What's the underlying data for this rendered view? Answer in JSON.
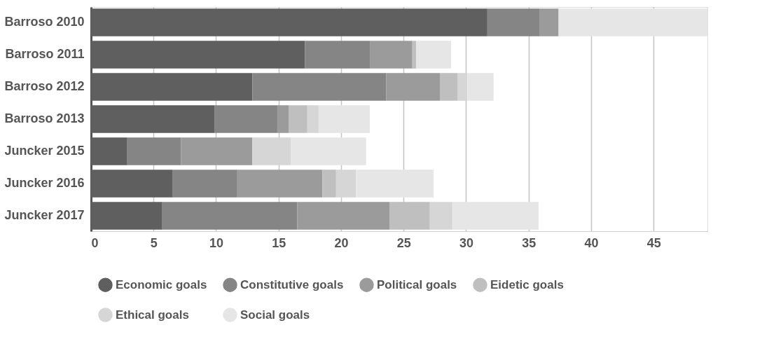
{
  "chart_data": {
    "type": "bar",
    "orientation": "horizontal",
    "stacked": true,
    "categories": [
      "Barroso 2010",
      "Barroso 2011",
      "Barroso 2012",
      "Barroso 2013",
      "Juncker 2015",
      "Juncker 2016",
      "Juncker 2017"
    ],
    "series": [
      {
        "name": "Economic goals",
        "color": "#5f5f5f",
        "values": [
          31.7,
          17.1,
          12.9,
          9.9,
          2.9,
          6.5,
          5.7
        ]
      },
      {
        "name": "Constitutive goals",
        "color": "#858585",
        "values": [
          4.2,
          5.2,
          10.7,
          5.0,
          4.3,
          5.2,
          10.8
        ]
      },
      {
        "name": "Political goals",
        "color": "#9b9b9b",
        "values": [
          1.5,
          3.4,
          4.3,
          0.9,
          5.7,
          6.8,
          7.4
        ]
      },
      {
        "name": "Eidetic goals",
        "color": "#bfbfbf",
        "values": [
          0,
          0.3,
          1.4,
          1.5,
          0,
          1.1,
          3.2
        ]
      },
      {
        "name": "Ethical goals",
        "color": "#d6d6d6",
        "values": [
          0,
          0,
          0.8,
          0.9,
          3.1,
          1.6,
          1.8
        ]
      },
      {
        "name": "Social goals",
        "color": "#e6e6e6",
        "values": [
          11.9,
          2.8,
          2.1,
          4.1,
          6.0,
          6.2,
          6.9
        ]
      }
    ],
    "xlim": [
      0,
      49.3
    ],
    "xticks": [
      0,
      5,
      10,
      15,
      20,
      25,
      30,
      35,
      40,
      45
    ],
    "grid": "x",
    "legend": "bottom"
  }
}
